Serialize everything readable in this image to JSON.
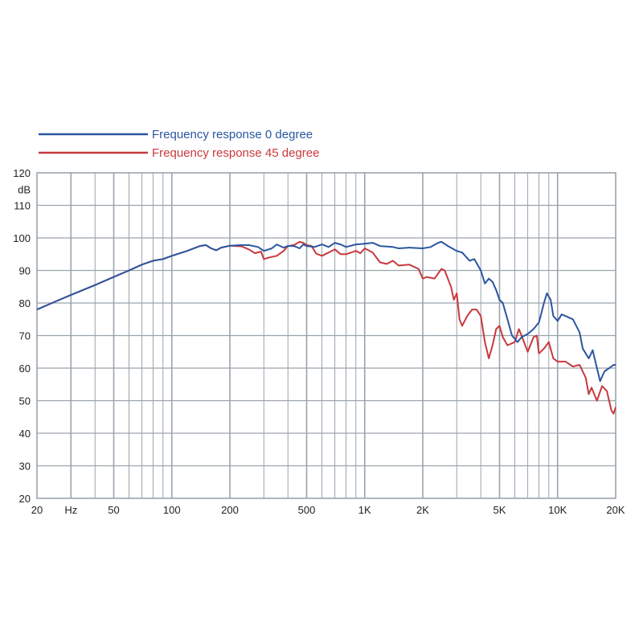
{
  "colors": {
    "series_0": "#2b56a0",
    "series_45": "#c8393e",
    "grid": "#9aa3ad",
    "frame": "#9aa3ad",
    "text": "#222222"
  },
  "chart_data": {
    "type": "line",
    "x_scale": "log",
    "xlim": [
      20,
      20000
    ],
    "ylim": [
      20,
      120
    ],
    "ylabel": "dB",
    "xlabel": "",
    "x_tick_labels": [
      {
        "value": 20,
        "label": "20"
      },
      {
        "value": 30,
        "label": "Hz"
      },
      {
        "value": 50,
        "label": "50"
      },
      {
        "value": 100,
        "label": "100"
      },
      {
        "value": 200,
        "label": "200"
      },
      {
        "value": 500,
        "label": "500"
      },
      {
        "value": 1000,
        "label": "1K"
      },
      {
        "value": 2000,
        "label": "2K"
      },
      {
        "value": 5000,
        "label": "5K"
      },
      {
        "value": 10000,
        "label": "10K"
      },
      {
        "value": 20000,
        "label": "20K"
      }
    ],
    "y_tick_labels": [
      {
        "value": 120,
        "label": "120"
      },
      {
        "value": 110,
        "label": "110"
      },
      {
        "value": 100,
        "label": "100"
      },
      {
        "value": 90,
        "label": "90"
      },
      {
        "value": 80,
        "label": "80"
      },
      {
        "value": 70,
        "label": "70"
      },
      {
        "value": 60,
        "label": "60"
      },
      {
        "value": 50,
        "label": "50"
      },
      {
        "value": 40,
        "label": "40"
      },
      {
        "value": 30,
        "label": "30"
      },
      {
        "value": 20,
        "label": "20"
      }
    ],
    "grid": true,
    "legend_position": "top-left",
    "series": [
      {
        "name": "Frequency response 0 degree",
        "points": [
          [
            20,
            78
          ],
          [
            25,
            80.5
          ],
          [
            30,
            82.5
          ],
          [
            40,
            85.5
          ],
          [
            50,
            88
          ],
          [
            60,
            90
          ],
          [
            70,
            91.8
          ],
          [
            80,
            93
          ],
          [
            90,
            93.5
          ],
          [
            100,
            94.5
          ],
          [
            120,
            96
          ],
          [
            140,
            97.5
          ],
          [
            150,
            97.8
          ],
          [
            160,
            96.8
          ],
          [
            170,
            96.2
          ],
          [
            180,
            97
          ],
          [
            200,
            97.6
          ],
          [
            230,
            97.8
          ],
          [
            250,
            97.8
          ],
          [
            280,
            97.2
          ],
          [
            300,
            96
          ],
          [
            330,
            96.8
          ],
          [
            350,
            98
          ],
          [
            380,
            97
          ],
          [
            400,
            97.5
          ],
          [
            430,
            97.5
          ],
          [
            460,
            96.8
          ],
          [
            480,
            98
          ],
          [
            500,
            97.5
          ],
          [
            550,
            97.2
          ],
          [
            600,
            98
          ],
          [
            650,
            97.2
          ],
          [
            700,
            98.5
          ],
          [
            750,
            98
          ],
          [
            800,
            97.2
          ],
          [
            900,
            98
          ],
          [
            1000,
            98.2
          ],
          [
            1100,
            98.5
          ],
          [
            1200,
            97.5
          ],
          [
            1400,
            97.2
          ],
          [
            1500,
            96.8
          ],
          [
            1700,
            97
          ],
          [
            2000,
            96.8
          ],
          [
            2200,
            97.2
          ],
          [
            2400,
            98.5
          ],
          [
            2500,
            98.8
          ],
          [
            2700,
            97.5
          ],
          [
            3000,
            96
          ],
          [
            3200,
            95.5
          ],
          [
            3500,
            93
          ],
          [
            3700,
            93.5
          ],
          [
            4000,
            90
          ],
          [
            4200,
            86
          ],
          [
            4400,
            87.5
          ],
          [
            4600,
            86.5
          ],
          [
            4800,
            84
          ],
          [
            5000,
            81
          ],
          [
            5200,
            80
          ],
          [
            5500,
            75
          ],
          [
            5800,
            70
          ],
          [
            6200,
            68
          ],
          [
            6500,
            69.5
          ],
          [
            7000,
            70.5
          ],
          [
            7500,
            72
          ],
          [
            8000,
            74
          ],
          [
            8500,
            80
          ],
          [
            8800,
            83
          ],
          [
            9200,
            81
          ],
          [
            9500,
            76
          ],
          [
            10000,
            74.5
          ],
          [
            10500,
            76.5
          ],
          [
            11000,
            76
          ],
          [
            12000,
            75
          ],
          [
            13000,
            71
          ],
          [
            13500,
            66
          ],
          [
            14500,
            63
          ],
          [
            15200,
            65.5
          ],
          [
            16000,
            60
          ],
          [
            16600,
            56
          ],
          [
            17500,
            59
          ],
          [
            18500,
            60
          ],
          [
            19500,
            61
          ],
          [
            20000,
            61
          ]
        ]
      },
      {
        "name": "Frequency response 45 degree",
        "points": [
          [
            20,
            78
          ],
          [
            25,
            80.5
          ],
          [
            30,
            82.5
          ],
          [
            40,
            85.5
          ],
          [
            50,
            88
          ],
          [
            60,
            90
          ],
          [
            70,
            91.8
          ],
          [
            80,
            93
          ],
          [
            90,
            93.5
          ],
          [
            100,
            94.5
          ],
          [
            120,
            96
          ],
          [
            140,
            97.5
          ],
          [
            150,
            97.8
          ],
          [
            160,
            96.8
          ],
          [
            170,
            96.2
          ],
          [
            180,
            97
          ],
          [
            200,
            97.6
          ],
          [
            230,
            97.4
          ],
          [
            250,
            96.5
          ],
          [
            270,
            95.3
          ],
          [
            290,
            95.8
          ],
          [
            300,
            93.5
          ],
          [
            320,
            94
          ],
          [
            350,
            94.5
          ],
          [
            380,
            96
          ],
          [
            400,
            97.5
          ],
          [
            430,
            97.8
          ],
          [
            460,
            98.8
          ],
          [
            480,
            98.5
          ],
          [
            500,
            97.8
          ],
          [
            530,
            97.5
          ],
          [
            560,
            95.2
          ],
          [
            600,
            94.5
          ],
          [
            650,
            95.5
          ],
          [
            700,
            96.5
          ],
          [
            750,
            95
          ],
          [
            800,
            95
          ],
          [
            900,
            96
          ],
          [
            950,
            95.3
          ],
          [
            1000,
            96.8
          ],
          [
            1100,
            95.5
          ],
          [
            1200,
            92.5
          ],
          [
            1300,
            92
          ],
          [
            1400,
            93
          ],
          [
            1500,
            91.5
          ],
          [
            1700,
            91.8
          ],
          [
            1900,
            90.5
          ],
          [
            2000,
            87.5
          ],
          [
            2100,
            88
          ],
          [
            2300,
            87.5
          ],
          [
            2500,
            90.5
          ],
          [
            2600,
            90
          ],
          [
            2800,
            85
          ],
          [
            2900,
            81
          ],
          [
            3000,
            83
          ],
          [
            3100,
            75
          ],
          [
            3200,
            73
          ],
          [
            3400,
            76
          ],
          [
            3600,
            78
          ],
          [
            3800,
            78
          ],
          [
            4000,
            76
          ],
          [
            4200,
            68
          ],
          [
            4400,
            63
          ],
          [
            4600,
            67
          ],
          [
            4800,
            72
          ],
          [
            5000,
            73
          ],
          [
            5200,
            69.5
          ],
          [
            5500,
            67
          ],
          [
            6000,
            68
          ],
          [
            6300,
            72
          ],
          [
            6500,
            70
          ],
          [
            7000,
            65
          ],
          [
            7500,
            69.5
          ],
          [
            7800,
            70
          ],
          [
            8000,
            64.5
          ],
          [
            8500,
            66
          ],
          [
            9000,
            68
          ],
          [
            9500,
            63
          ],
          [
            10000,
            62
          ],
          [
            11000,
            62
          ],
          [
            12000,
            60.5
          ],
          [
            13000,
            61
          ],
          [
            14000,
            57
          ],
          [
            14500,
            52
          ],
          [
            15000,
            54
          ],
          [
            16000,
            50
          ],
          [
            17000,
            54.5
          ],
          [
            18000,
            53
          ],
          [
            19000,
            47
          ],
          [
            19500,
            46
          ],
          [
            20000,
            48
          ]
        ]
      }
    ]
  }
}
